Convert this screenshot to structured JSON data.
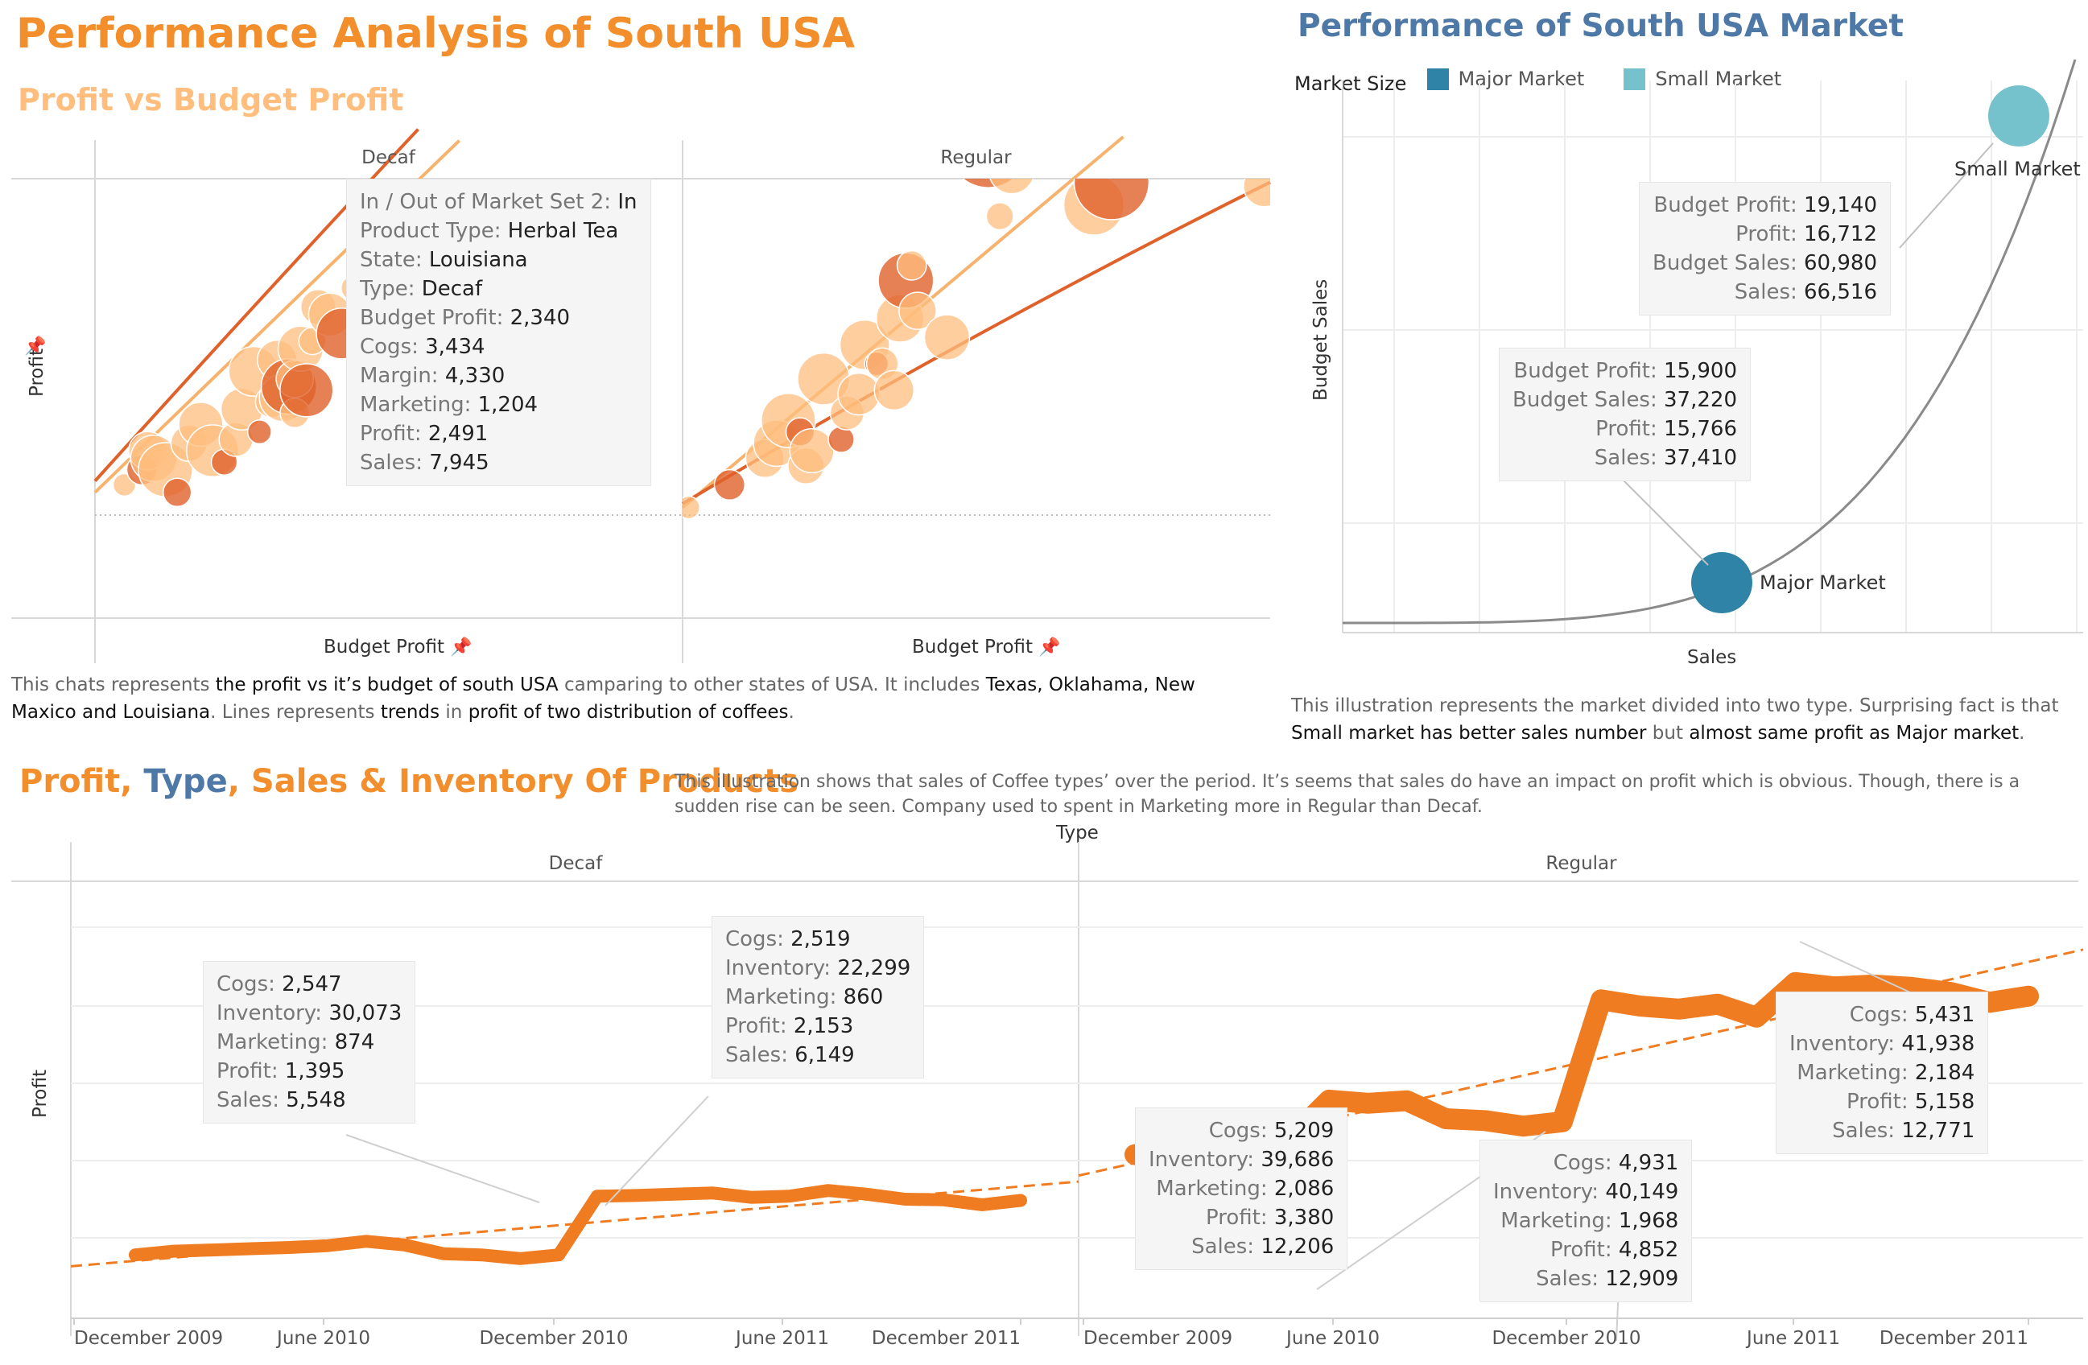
{
  "header": {
    "main_title": "Performance Analysis of South USA",
    "sub_title": "Profit vs Budget Profit",
    "market_title": "Performance of South USA Market"
  },
  "scatter_panel": {
    "panels": [
      "Decaf",
      "Regular"
    ],
    "y_axis_title": "Profit",
    "x_axis_title": "Budget Profit",
    "tooltip": [
      {
        "label": "In / Out of Market Set 2:",
        "value": "In"
      },
      {
        "label": "Product Type:",
        "value": "Herbal Tea"
      },
      {
        "label": "State:",
        "value": "Louisiana"
      },
      {
        "label": "Type:",
        "value": "Decaf"
      },
      {
        "label": "Budget Profit:",
        "value": "2,340"
      },
      {
        "label": "Cogs:",
        "value": "3,434"
      },
      {
        "label": "Margin:",
        "value": "4,330"
      },
      {
        "label": "Marketing:",
        "value": "1,204"
      },
      {
        "label": "Profit:",
        "value": "2,491"
      },
      {
        "label": "Sales:",
        "value": "7,945"
      }
    ],
    "description": [
      {
        "t": "This chats represents ",
        "b": false
      },
      {
        "t": "the profit vs it’s budget of south USA",
        "b": true
      },
      {
        "t": " camparing to other states of USA. It includes ",
        "b": false
      },
      {
        "t": "Texas, Oklahama, New Maxico and Louisiana",
        "b": true
      },
      {
        "t": ". Lines represents ",
        "b": false
      },
      {
        "t": "trends",
        "b": true
      },
      {
        "t": " in ",
        "b": false
      },
      {
        "t": "profit of two distribution of coffees",
        "b": true
      },
      {
        "t": ".",
        "b": false
      }
    ],
    "colors": {
      "light": "#ffbe7d",
      "dark": "#e0622a",
      "trend_light": "#f7b36d",
      "trend_dark": "#e0622a"
    }
  },
  "market_panel": {
    "legend_title": "Market Size",
    "legend": [
      {
        "label": "Major Market",
        "color": "#2e83a6"
      },
      {
        "label": "Small Market",
        "color": "#76c2cc"
      }
    ],
    "y_axis_title": "Budget Sales",
    "x_axis_title": "Sales",
    "point_labels": {
      "major": "Major Market",
      "small": "Small Market"
    },
    "tooltip_small": [
      {
        "label": "Budget Profit:",
        "value": "19,140"
      },
      {
        "label": "Profit:",
        "value": "16,712"
      },
      {
        "label": "Budget Sales:",
        "value": "60,980"
      },
      {
        "label": "Sales:",
        "value": "66,516"
      }
    ],
    "tooltip_major": [
      {
        "label": "Budget Profit:",
        "value": "15,900"
      },
      {
        "label": "Budget Sales:",
        "value": "37,220"
      },
      {
        "label": "Profit:",
        "value": "15,766"
      },
      {
        "label": "Sales:",
        "value": "37,410"
      }
    ],
    "description": [
      {
        "t": "This illustration represents the market divided into two type. Surprising fact is that ",
        "b": false
      },
      {
        "t": "Small market has better sales number",
        "b": true
      },
      {
        "t": " but ",
        "b": false
      },
      {
        "t": "almost same profit as Major market",
        "b": true
      },
      {
        "t": ".",
        "b": false
      }
    ]
  },
  "bottom": {
    "title_parts": [
      {
        "t": "Profit",
        "color": "#f28e2b"
      },
      {
        "t": ", ",
        "color": "#f28e2b"
      },
      {
        "t": "Type",
        "color": "#4e79a7"
      },
      {
        "t": ", Sales & Inventory Of Products",
        "color": "#f28e2b"
      }
    ],
    "description": "This illustration shows that sales of Coffee types’ over the period. It’s seems that sales do have an impact on profit which is obvious. Though, there is a sudden rise can be seen. Company used to spent in Marketing more in Regular than Decaf.",
    "type_header": "Type",
    "panels": [
      "Decaf",
      "Regular"
    ],
    "y_axis_title": "Profit",
    "x_ticks": [
      "December 2009",
      "June 2010",
      "December 2010",
      "June 2011",
      "December 2011"
    ],
    "tooltips": [
      {
        "id": "decaf-1",
        "rows": [
          [
            "Cogs:",
            "2,547"
          ],
          [
            "Inventory:",
            "30,073"
          ],
          [
            "Marketing:",
            "874"
          ],
          [
            "Profit:",
            "1,395"
          ],
          [
            "Sales:",
            "5,548"
          ]
        ]
      },
      {
        "id": "decaf-2",
        "rows": [
          [
            "Cogs:",
            "2,519"
          ],
          [
            "Inventory:",
            "22,299"
          ],
          [
            "Marketing:",
            "860"
          ],
          [
            "Profit:",
            "2,153"
          ],
          [
            "Sales:",
            "6,149"
          ]
        ]
      },
      {
        "id": "regular-1",
        "rows": [
          [
            "Cogs:",
            "5,209"
          ],
          [
            "Inventory:",
            "39,686"
          ],
          [
            "Marketing:",
            "2,086"
          ],
          [
            "Profit:",
            "3,380"
          ],
          [
            "Sales:",
            "12,206"
          ]
        ]
      },
      {
        "id": "regular-2",
        "rows": [
          [
            "Cogs:",
            "4,931"
          ],
          [
            "Inventory:",
            "40,149"
          ],
          [
            "Marketing:",
            "1,968"
          ],
          [
            "Profit:",
            "4,852"
          ],
          [
            "Sales:",
            "12,909"
          ]
        ]
      },
      {
        "id": "regular-3",
        "rows": [
          [
            "Cogs:",
            "5,431"
          ],
          [
            "Inventory:",
            "41,938"
          ],
          [
            "Marketing:",
            "2,184"
          ],
          [
            "Profit:",
            "5,158"
          ],
          [
            "Sales:",
            "12,771"
          ]
        ]
      }
    ],
    "line_color": "#f07c22"
  },
  "chart_data": [
    {
      "type": "scatter",
      "title": "Profit vs Budget Profit",
      "xlabel": "Budget Profit",
      "ylabel": "Profit",
      "panels": [
        "Decaf",
        "Regular"
      ],
      "series": [
        {
          "name": "Decaf",
          "points": [
            [
              0.05,
              0.08
            ],
            [
              0.08,
              0.12
            ],
            [
              0.09,
              0.17
            ],
            [
              0.1,
              0.15
            ],
            [
              0.12,
              0.12
            ],
            [
              0.14,
              0.06
            ],
            [
              0.16,
              0.19
            ],
            [
              0.18,
              0.24
            ],
            [
              0.2,
              0.17
            ],
            [
              0.22,
              0.14
            ],
            [
              0.24,
              0.2
            ],
            [
              0.25,
              0.28
            ],
            [
              0.27,
              0.38
            ],
            [
              0.28,
              0.22
            ],
            [
              0.3,
              0.3
            ],
            [
              0.31,
              0.41
            ],
            [
              0.32,
              0.31
            ],
            [
              0.33,
              0.34
            ],
            [
              0.34,
              0.27
            ],
            [
              0.34,
              0.36
            ],
            [
              0.35,
              0.44
            ],
            [
              0.36,
              0.33
            ],
            [
              0.37,
              0.46
            ],
            [
              0.38,
              0.55
            ],
            [
              0.4,
              0.53
            ],
            [
              0.42,
              0.48
            ],
            [
              0.44,
              0.6
            ]
          ]
        },
        {
          "name": "Regular",
          "points": [
            [
              0.01,
              0.02
            ],
            [
              0.08,
              0.08
            ],
            [
              0.14,
              0.15
            ],
            [
              0.16,
              0.19
            ],
            [
              0.18,
              0.25
            ],
            [
              0.2,
              0.22
            ],
            [
              0.21,
              0.13
            ],
            [
              0.22,
              0.17
            ],
            [
              0.24,
              0.36
            ],
            [
              0.27,
              0.2
            ],
            [
              0.28,
              0.27
            ],
            [
              0.3,
              0.32
            ],
            [
              0.31,
              0.45
            ],
            [
              0.33,
              0.4
            ],
            [
              0.34,
              0.4
            ],
            [
              0.36,
              0.33
            ],
            [
              0.37,
              0.52
            ],
            [
              0.38,
              0.62
            ],
            [
              0.39,
              0.66
            ],
            [
              0.4,
              0.54
            ],
            [
              0.45,
              0.47
            ],
            [
              0.52,
              0.97
            ],
            [
              0.54,
              0.79
            ],
            [
              0.56,
              0.91
            ],
            [
              0.7,
              0.82
            ],
            [
              0.73,
              0.88
            ],
            [
              0.74,
              0.96
            ],
            [
              0.99,
              0.87
            ]
          ]
        }
      ],
      "trend_lines": 2
    },
    {
      "type": "scatter",
      "title": "Performance of South USA Market",
      "xlabel": "Sales",
      "ylabel": "Budget Sales",
      "series": [
        {
          "name": "Major Market",
          "points": [
            {
              "x": 37410,
              "y": 37220
            }
          ]
        },
        {
          "name": "Small Market",
          "points": [
            {
              "x": 66516,
              "y": 60980
            }
          ]
        }
      ]
    },
    {
      "type": "line",
      "title": "Profit, Type, Sales & Inventory Of Products",
      "xlabel": "",
      "ylabel": "Profit",
      "x_ticks": [
        "December 2009",
        "June 2010",
        "December 2010",
        "June 2011",
        "December 2011"
      ],
      "series": [
        {
          "name": "Decaf",
          "values": [
            1180,
            1240,
            1260,
            1280,
            1300,
            1330,
            1400,
            1340,
            1200,
            1180,
            1120,
            1180,
            2130,
            2140,
            2160,
            2180,
            2110,
            2130,
            2220,
            2160,
            2080,
            2070,
            1990,
            2060
          ]
        },
        {
          "name": "Regular",
          "values": [
            2800,
            2880,
            2880,
            2960,
            3060,
            3680,
            3630,
            3670,
            3380,
            3350,
            3260,
            3330,
            5300,
            5200,
            5150,
            5230,
            5020,
            5580,
            5510,
            5540,
            5500,
            5420,
            5260,
            5360
          ]
        }
      ],
      "trend": "dashed linear"
    }
  ]
}
